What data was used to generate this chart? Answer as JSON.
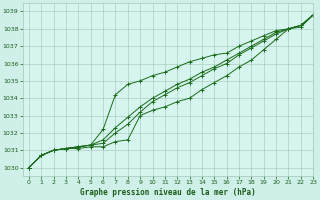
{
  "title": "Graphe pression niveau de la mer (hPa)",
  "background_color": "#cff0e8",
  "plot_bg_color": "#d6f5ee",
  "grid_color": "#a0c8b8",
  "text_color": "#1a5c1a",
  "line_color": "#1a6b1a",
  "xlim": [
    -0.5,
    23
  ],
  "ylim": [
    1029.5,
    1039.5
  ],
  "xticks": [
    0,
    1,
    2,
    3,
    4,
    5,
    6,
    7,
    8,
    9,
    10,
    11,
    12,
    13,
    14,
    15,
    16,
    17,
    18,
    19,
    20,
    21,
    22,
    23
  ],
  "yticks": [
    1030,
    1031,
    1032,
    1033,
    1034,
    1035,
    1036,
    1037,
    1038,
    1039
  ],
  "series": [
    [
      1030.0,
      1030.7,
      1031.0,
      1031.1,
      1031.1,
      1031.2,
      1031.2,
      1031.5,
      1031.6,
      1033.0,
      1033.3,
      1033.5,
      1033.8,
      1034.0,
      1034.5,
      1034.9,
      1035.3,
      1035.8,
      1036.2,
      1036.8,
      1037.4,
      1038.0,
      1038.1,
      1038.8
    ],
    [
      1030.0,
      1030.7,
      1031.0,
      1031.1,
      1031.2,
      1031.3,
      1031.4,
      1032.0,
      1032.5,
      1033.2,
      1033.8,
      1034.2,
      1034.6,
      1034.9,
      1035.3,
      1035.7,
      1036.0,
      1036.5,
      1036.9,
      1037.3,
      1037.7,
      1038.0,
      1038.2,
      1038.8
    ],
    [
      1030.0,
      1030.7,
      1031.0,
      1031.1,
      1031.2,
      1031.3,
      1031.6,
      1032.3,
      1032.9,
      1033.5,
      1034.0,
      1034.4,
      1034.8,
      1035.1,
      1035.5,
      1035.8,
      1036.2,
      1036.6,
      1037.0,
      1037.4,
      1037.8,
      1038.0,
      1038.2,
      1038.8
    ],
    [
      1030.0,
      1030.7,
      1031.0,
      1031.1,
      1031.2,
      1031.3,
      1032.2,
      1034.2,
      1034.8,
      1035.0,
      1035.3,
      1035.5,
      1035.8,
      1036.1,
      1036.3,
      1036.5,
      1036.6,
      1037.0,
      1037.3,
      1037.6,
      1037.9,
      1038.0,
      1038.2,
      1038.8
    ]
  ]
}
